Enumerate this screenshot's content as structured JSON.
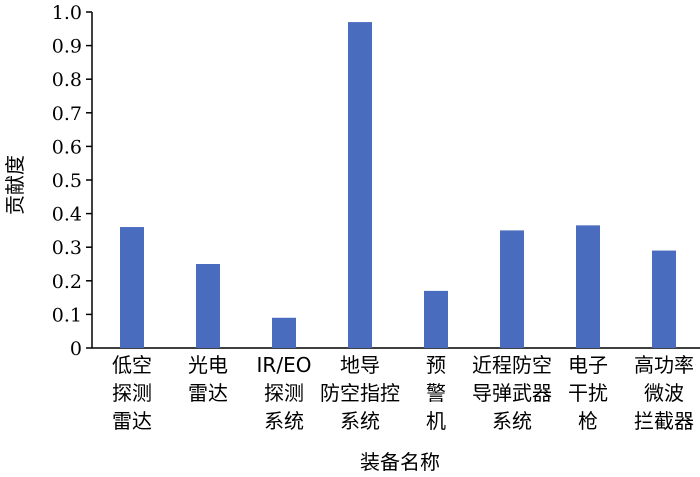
{
  "chart_data": {
    "type": "bar",
    "xlabel": "装备名称",
    "ylabel": "贡献度",
    "ylim": [
      0,
      1.0
    ],
    "yticks": [
      "0",
      "0.1",
      "0.2",
      "0.3",
      "0.4",
      "0.5",
      "0.6",
      "0.7",
      "0.8",
      "0.9",
      "1.0"
    ],
    "grid": false,
    "bar_color": "#4a6cbf",
    "categories": [
      [
        "低空",
        "探测",
        "雷达"
      ],
      [
        "光电",
        "雷达"
      ],
      [
        "IR/EO",
        "探测",
        "系统"
      ],
      [
        "地导",
        "防空指控",
        "系统"
      ],
      [
        "预",
        "警",
        "机"
      ],
      [
        "近程防空",
        "导弹武器",
        "系统"
      ],
      [
        "电子",
        "干扰",
        "枪"
      ],
      [
        "高功率",
        "微波",
        "拦截器"
      ]
    ],
    "values": [
      0.36,
      0.25,
      0.09,
      0.97,
      0.17,
      0.35,
      0.365,
      0.29
    ]
  }
}
